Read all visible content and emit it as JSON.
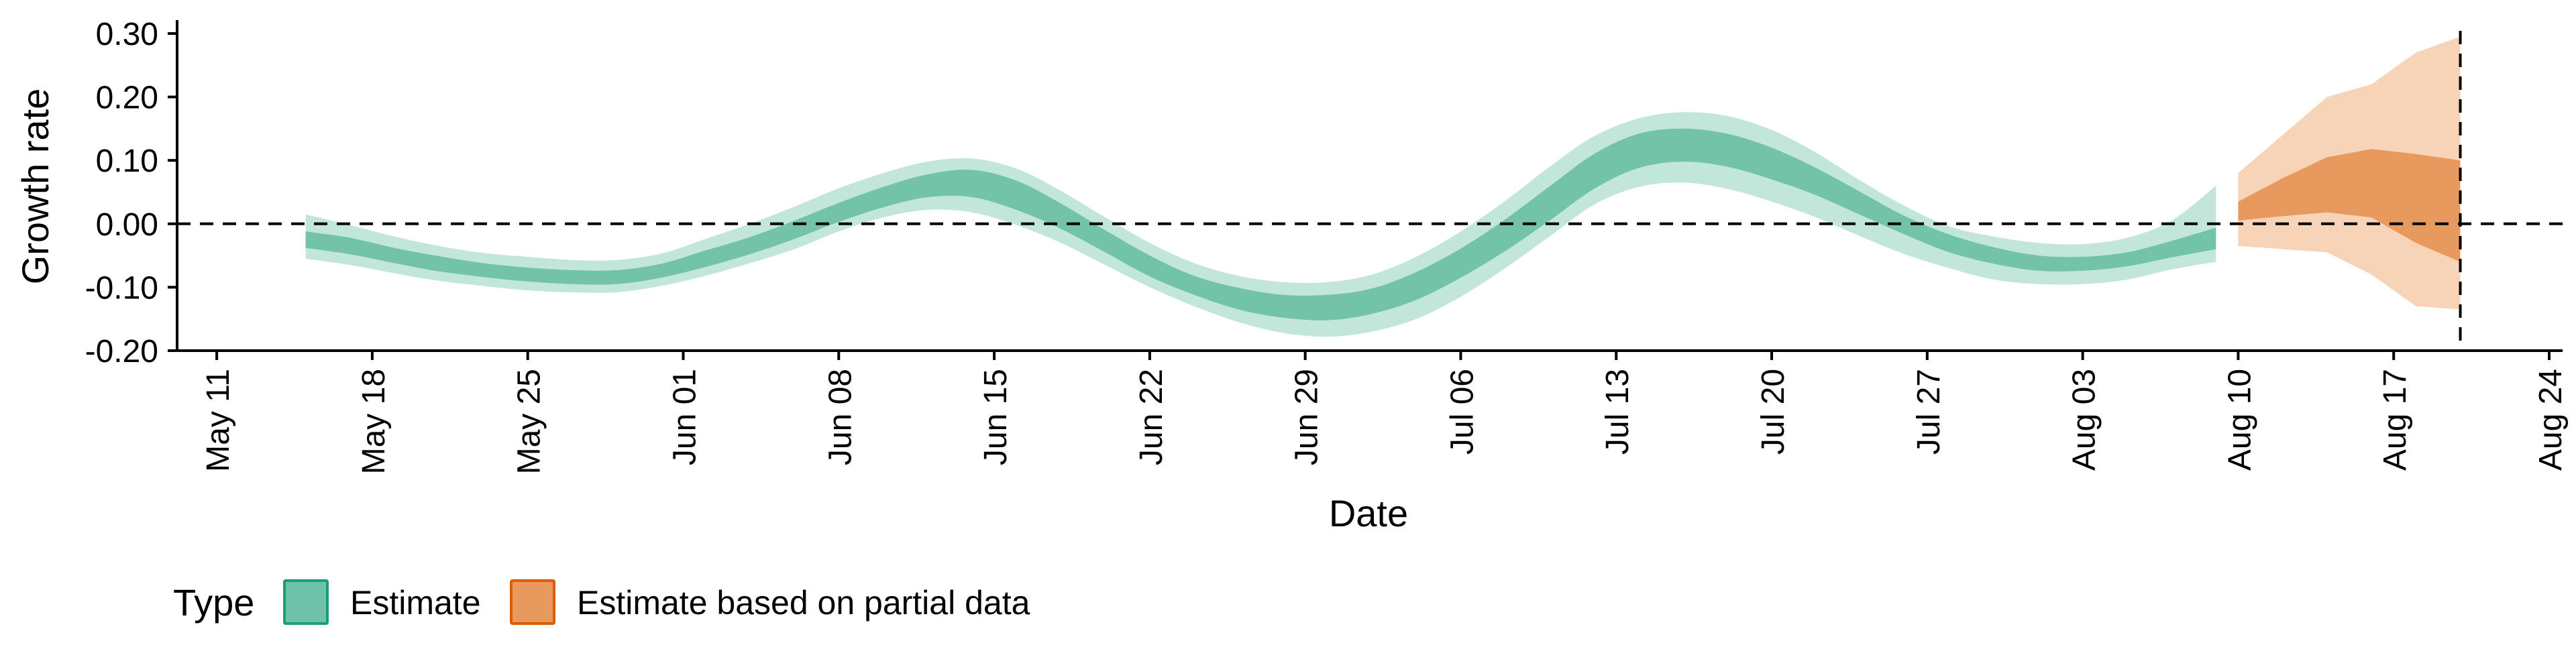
{
  "chart_data": {
    "type": "area",
    "title": "",
    "xlabel": "Date",
    "ylabel": "Growth rate",
    "xlim": [
      "2021-05-10",
      "2021-08-24"
    ],
    "ylim": [
      -0.2,
      0.3
    ],
    "x_ticks": [
      "May 11",
      "May 18",
      "May 25",
      "Jun 01",
      "Jun 08",
      "Jun 15",
      "Jun 22",
      "Jun 29",
      "Jul 06",
      "Jul 13",
      "Jul 20",
      "Jul 27",
      "Aug 03",
      "Aug 10",
      "Aug 17",
      "Aug 24"
    ],
    "y_ticks": [
      "-0.20",
      "-0.10",
      "0.00",
      "0.10",
      "0.20",
      "0.30"
    ],
    "reference_lines": {
      "horizontal_y": 0.0,
      "vertical_date": "2021-08-20"
    },
    "grid": false,
    "legend": {
      "title": "Type",
      "position": "bottom-left",
      "items": [
        {
          "label": "Estimate",
          "fill": "#6fc2a9",
          "stroke": "#1b9e77"
        },
        {
          "label": "Estimate based on partial data",
          "fill": "#e89a5e",
          "stroke": "#d95f02"
        }
      ]
    },
    "colors": {
      "estimate_outer": "#c2e6db",
      "estimate_inner": "#72c3a8",
      "partial_outer": "#f7d3b8",
      "partial_inner": "#e89a5e"
    },
    "series": [
      {
        "name": "Estimate",
        "dates": [
          "2021-05-15",
          "2021-05-17",
          "2021-05-19",
          "2021-05-21",
          "2021-05-23",
          "2021-05-25",
          "2021-05-27",
          "2021-05-29",
          "2021-05-31",
          "2021-06-02",
          "2021-06-04",
          "2021-06-06",
          "2021-06-08",
          "2021-06-10",
          "2021-06-12",
          "2021-06-14",
          "2021-06-16",
          "2021-06-18",
          "2021-06-20",
          "2021-06-22",
          "2021-06-24",
          "2021-06-26",
          "2021-06-28",
          "2021-06-30",
          "2021-07-02",
          "2021-07-04",
          "2021-07-06",
          "2021-07-08",
          "2021-07-10",
          "2021-07-12",
          "2021-07-14",
          "2021-07-16",
          "2021-07-18",
          "2021-07-20",
          "2021-07-22",
          "2021-07-24",
          "2021-07-26",
          "2021-07-28",
          "2021-07-30",
          "2021-08-01",
          "2021-08-03",
          "2021-08-05",
          "2021-08-07",
          "2021-08-09"
        ],
        "lower_90": [
          -0.055,
          -0.065,
          -0.078,
          -0.09,
          -0.098,
          -0.105,
          -0.108,
          -0.108,
          -0.098,
          -0.082,
          -0.062,
          -0.04,
          -0.012,
          0.01,
          0.022,
          0.018,
          -0.002,
          -0.03,
          -0.065,
          -0.1,
          -0.13,
          -0.155,
          -0.172,
          -0.178,
          -0.17,
          -0.15,
          -0.115,
          -0.07,
          -0.02,
          0.03,
          0.058,
          0.065,
          0.055,
          0.035,
          0.01,
          -0.02,
          -0.048,
          -0.07,
          -0.088,
          -0.095,
          -0.095,
          -0.088,
          -0.072,
          -0.06
        ],
        "lower_50": [
          -0.038,
          -0.048,
          -0.062,
          -0.075,
          -0.084,
          -0.091,
          -0.095,
          -0.095,
          -0.085,
          -0.068,
          -0.048,
          -0.024,
          0.003,
          0.026,
          0.042,
          0.042,
          0.022,
          -0.008,
          -0.045,
          -0.083,
          -0.112,
          -0.135,
          -0.148,
          -0.152,
          -0.142,
          -0.12,
          -0.085,
          -0.043,
          0.005,
          0.055,
          0.088,
          0.098,
          0.09,
          0.07,
          0.045,
          0.014,
          -0.017,
          -0.045,
          -0.063,
          -0.074,
          -0.074,
          -0.067,
          -0.053,
          -0.04
        ],
        "median": [
          -0.025,
          -0.035,
          -0.05,
          -0.063,
          -0.073,
          -0.08,
          -0.084,
          -0.084,
          -0.074,
          -0.055,
          -0.035,
          -0.01,
          0.018,
          0.042,
          0.06,
          0.064,
          0.045,
          0.012,
          -0.028,
          -0.067,
          -0.097,
          -0.118,
          -0.13,
          -0.132,
          -0.122,
          -0.098,
          -0.062,
          -0.018,
          0.032,
          0.083,
          0.115,
          0.124,
          0.116,
          0.095,
          0.066,
          0.032,
          -0.003,
          -0.031,
          -0.05,
          -0.062,
          -0.063,
          -0.056,
          -0.04,
          -0.023
        ],
        "upper_50": [
          -0.012,
          -0.022,
          -0.038,
          -0.051,
          -0.062,
          -0.069,
          -0.073,
          -0.073,
          -0.063,
          -0.042,
          -0.021,
          0.005,
          0.033,
          0.058,
          0.078,
          0.085,
          0.068,
          0.032,
          -0.01,
          -0.05,
          -0.082,
          -0.101,
          -0.112,
          -0.112,
          -0.102,
          -0.076,
          -0.039,
          0.007,
          0.059,
          0.11,
          0.142,
          0.15,
          0.142,
          0.12,
          0.088,
          0.05,
          0.012,
          -0.017,
          -0.037,
          -0.05,
          -0.052,
          -0.045,
          -0.027,
          -0.006
        ],
        "upper_90": [
          0.015,
          -0.002,
          -0.02,
          -0.035,
          -0.046,
          -0.052,
          -0.057,
          -0.057,
          -0.047,
          -0.024,
          0.0,
          0.027,
          0.056,
          0.08,
          0.098,
          0.103,
          0.087,
          0.052,
          0.01,
          -0.03,
          -0.062,
          -0.082,
          -0.092,
          -0.092,
          -0.08,
          -0.052,
          -0.012,
          0.036,
          0.09,
          0.138,
          0.166,
          0.176,
          0.17,
          0.148,
          0.112,
          0.068,
          0.028,
          -0.004,
          -0.02,
          -0.03,
          -0.032,
          -0.022,
          0.005,
          0.06
        ]
      },
      {
        "name": "Estimate based on partial data",
        "dates": [
          "2021-08-10",
          "2021-08-12",
          "2021-08-14",
          "2021-08-16",
          "2021-08-18",
          "2021-08-20"
        ],
        "lower_90": [
          -0.035,
          -0.04,
          -0.045,
          -0.08,
          -0.13,
          -0.135
        ],
        "lower_50": [
          0.005,
          0.012,
          0.018,
          0.01,
          -0.03,
          -0.06
        ],
        "upper_50": [
          0.035,
          0.072,
          0.105,
          0.118,
          0.11,
          0.1
        ],
        "upper_90": [
          0.08,
          0.14,
          0.2,
          0.22,
          0.27,
          0.295
        ]
      }
    ]
  }
}
